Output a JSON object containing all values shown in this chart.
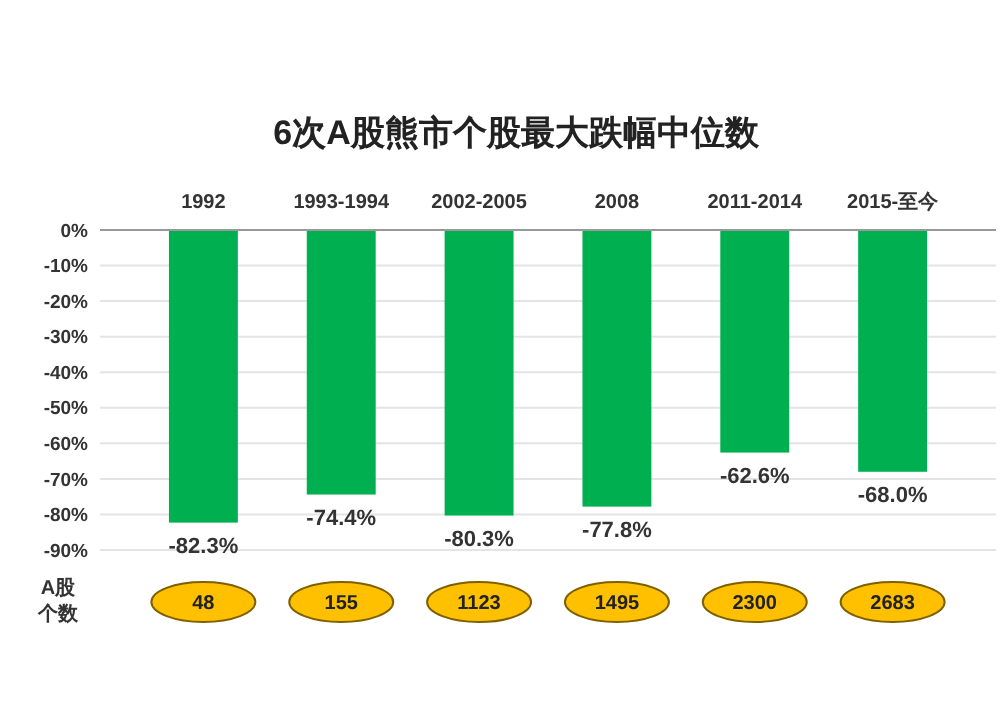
{
  "chart_data": {
    "type": "bar",
    "title": "6次A股熊市个股最大跌幅中位数",
    "categories": [
      "1992",
      "1993-1994",
      "2002-2005",
      "2008",
      "2011-2014",
      "2015-至今"
    ],
    "values": [
      -82.3,
      -74.4,
      -80.3,
      -77.8,
      -62.6,
      -68.0
    ],
    "value_labels": [
      "-82.3%",
      "-74.4%",
      "-80.3%",
      "-77.8%",
      "-62.6%",
      "-68.0%"
    ],
    "color": "#00b050",
    "ylim": [
      -90,
      0
    ],
    "yticks": [
      {
        "value": 0,
        "label": "0%"
      },
      {
        "value": -10,
        "label": "-10%"
      },
      {
        "value": -20,
        "label": "-20%"
      },
      {
        "value": -30,
        "label": "-30%"
      },
      {
        "value": -40,
        "label": "-40%"
      },
      {
        "value": -50,
        "label": "-50%"
      },
      {
        "value": -60,
        "label": "-60%"
      },
      {
        "value": -70,
        "label": "-70%"
      },
      {
        "value": -80,
        "label": "-80%"
      },
      {
        "value": -90,
        "label": "-90%"
      }
    ],
    "grid": "y",
    "annotations": [
      "A股个数",
      "48",
      "155",
      "1123",
      "1495",
      "2300",
      "2683"
    ]
  }
}
